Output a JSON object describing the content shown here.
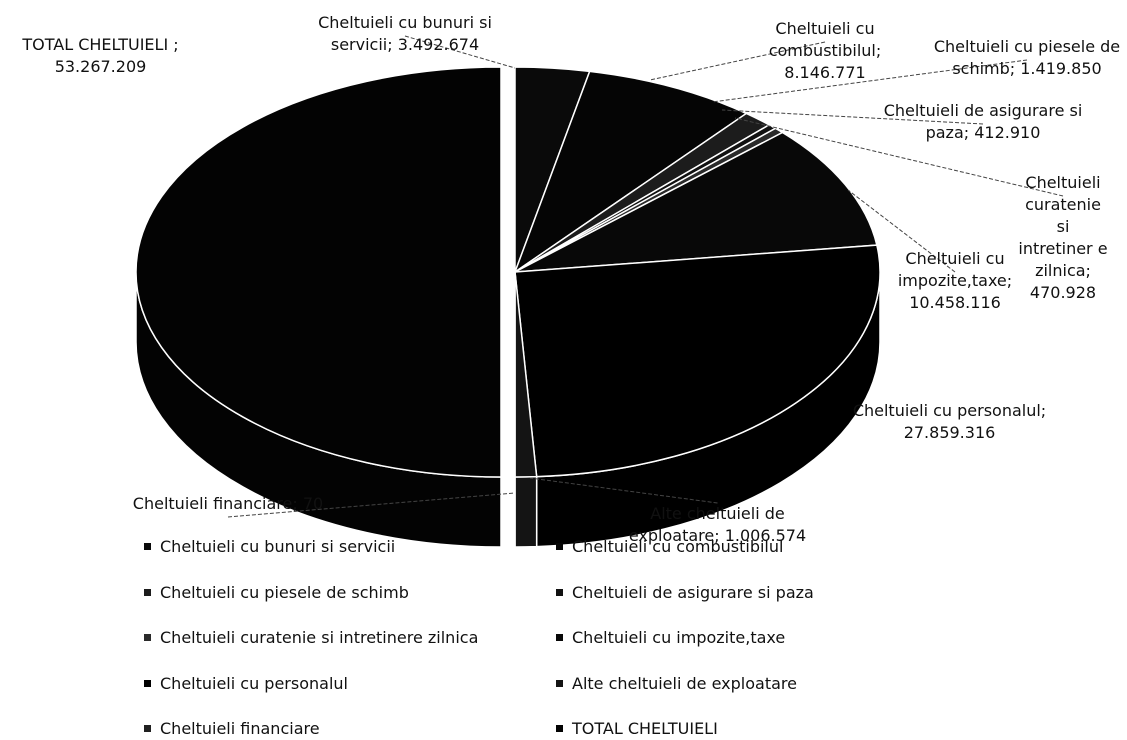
{
  "chart_data": {
    "type": "pie",
    "categories": [
      "Cheltuieli cu bunuri si servicii",
      "Cheltuieli cu combustibilul",
      "Cheltuieli cu piesele de schimb",
      "Cheltuieli de asigurare si paza",
      "Cheltuieli curatenie si intretinere zilnica",
      "Cheltuieli cu impozite,taxe",
      "Cheltuieli cu personalul",
      "Alte cheltuieli de exploatare",
      "Cheltuieli financiare",
      "TOTAL CHELTUIELI"
    ],
    "values": [
      3492674,
      8146771,
      1419850,
      412910,
      470928,
      10458116,
      27859316,
      1006574,
      70,
      53267209
    ],
    "value_labels": [
      "Cheltuieli cu bunuri si servicii; 3.492.674",
      "Cheltuieli cu combustibilul; 8.146.771",
      "Cheltuieli cu piesele de schimb; 1.419.850",
      "Cheltuieli de asigurare si paza; 412.910",
      "Cheltuieli curatenie si intretiner e zilnica; 470.928",
      "Cheltuieli cu impozite,taxe; 10.458.116",
      "Cheltuieli cu personalul; 27.859.316",
      "Alte cheltuieli de exploatare; 1.006.574",
      "Cheltuieli financiare; 70",
      "TOTAL CHELTUIELI ; 53.267.209"
    ],
    "colors": [
      "#0a0a0a",
      "#050505",
      "#1c1c1c",
      "#111111",
      "#2a2a2a",
      "#080808",
      "#000000",
      "#141414",
      "#202020",
      "#030303"
    ],
    "legend": "bottom"
  }
}
